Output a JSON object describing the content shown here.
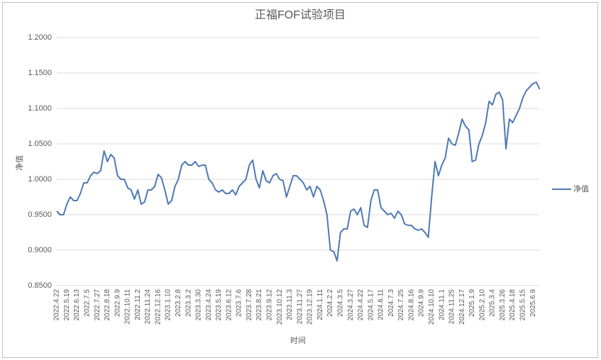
{
  "chart_data": {
    "type": "line",
    "title": "正福FOF试验项目",
    "x_label": "时间",
    "y_label": "净值",
    "categories": [
      "2022.4.22",
      null,
      null,
      "2022.5.19",
      null,
      null,
      "2022.6.13",
      null,
      null,
      "2022.7.5",
      null,
      null,
      "2022.7.27",
      null,
      null,
      "2022.8.18",
      null,
      null,
      "2022.9.9",
      null,
      null,
      "2022.10.11",
      null,
      null,
      "2022.11.2",
      null,
      null,
      "2022.11.24",
      null,
      null,
      "2022.12.16",
      null,
      null,
      "2023.1.10",
      null,
      null,
      "2023.2.8",
      null,
      null,
      "2023.3.2",
      null,
      null,
      "2023.3.30",
      null,
      null,
      "2023.4.24",
      null,
      null,
      "2023.5.19",
      null,
      null,
      "2023.6.12",
      null,
      null,
      "2023.7.6",
      null,
      null,
      "2023.7.28",
      null,
      null,
      "2023.8.21",
      null,
      null,
      "2023.9.12",
      null,
      null,
      "2023.10.12",
      null,
      null,
      "2023.11.3",
      null,
      null,
      "2023.11.27",
      null,
      null,
      "2023.12.19",
      null,
      null,
      "2024.1.11",
      null,
      null,
      "2024.2.2",
      null,
      null,
      "2024.3.5",
      null,
      null,
      "2024.3.27",
      null,
      null,
      "2024.4.22",
      null,
      null,
      "2024.5.17",
      null,
      null,
      "2024.6.11",
      null,
      null,
      "2024.7.3",
      null,
      null,
      "2024.7.25",
      null,
      null,
      "2024.8.16",
      null,
      null,
      "2024.9.9",
      null,
      null,
      "2024.10.10",
      null,
      null,
      "2024.11.1",
      null,
      null,
      "2024.11.25",
      null,
      null,
      "2024.12.17",
      null,
      null,
      "2025.1.9",
      null,
      null,
      "2025.2.10",
      null,
      null,
      "2025.3.4",
      null,
      null,
      "2025.3.26",
      null,
      null,
      "2025.4.18",
      null,
      null,
      "2025.5.15",
      null,
      null,
      "2025.6.9",
      null,
      null
    ],
    "series": [
      {
        "name": "净值",
        "color": "#4e79b4",
        "values": [
          0.955,
          0.95,
          0.95,
          0.965,
          0.975,
          0.97,
          0.97,
          0.98,
          0.995,
          0.995,
          1.005,
          1.01,
          1.008,
          1.012,
          1.04,
          1.025,
          1.035,
          1.03,
          1.005,
          1.0,
          1.0,
          0.988,
          0.985,
          0.972,
          0.985,
          0.965,
          0.968,
          0.985,
          0.985,
          0.99,
          1.007,
          1.002,
          0.985,
          0.965,
          0.97,
          0.99,
          1.0,
          1.02,
          1.025,
          1.02,
          1.02,
          1.025,
          1.018,
          1.02,
          1.02,
          1.0,
          0.995,
          0.985,
          0.982,
          0.985,
          0.98,
          0.98,
          0.985,
          0.978,
          0.99,
          0.995,
          1.0,
          1.02,
          1.027,
          1.0,
          0.988,
          1.012,
          0.998,
          0.995,
          1.005,
          1.008,
          1.0,
          0.998,
          0.975,
          0.99,
          1.005,
          1.005,
          1.0,
          0.995,
          0.985,
          0.99,
          0.975,
          0.99,
          0.985,
          0.97,
          0.95,
          0.9,
          0.898,
          0.885,
          0.925,
          0.93,
          0.93,
          0.955,
          0.958,
          0.95,
          0.96,
          0.935,
          0.932,
          0.97,
          0.985,
          0.985,
          0.96,
          0.955,
          0.95,
          0.952,
          0.945,
          0.955,
          0.95,
          0.937,
          0.935,
          0.935,
          0.93,
          0.928,
          0.93,
          0.925,
          0.918,
          0.975,
          1.025,
          1.005,
          1.02,
          1.03,
          1.058,
          1.05,
          1.048,
          1.065,
          1.085,
          1.075,
          1.07,
          1.025,
          1.027,
          1.05,
          1.062,
          1.08,
          1.11,
          1.105,
          1.12,
          1.123,
          1.112,
          1.043,
          1.085,
          1.08,
          1.09,
          1.1,
          1.115,
          1.125,
          1.13,
          1.135,
          1.137,
          1.127
        ]
      }
    ],
    "ylim": [
      0.85,
      1.2
    ],
    "yticks": [
      {
        "value": 0.85,
        "label": "0.8500"
      },
      {
        "value": 0.9,
        "label": "0.9000"
      },
      {
        "value": 0.95,
        "label": "0.9500"
      },
      {
        "value": 1.0,
        "label": "1.0000"
      },
      {
        "value": 1.05,
        "label": "1.0500"
      },
      {
        "value": 1.1,
        "label": "1.1000"
      },
      {
        "value": 1.15,
        "label": "1.1500"
      },
      {
        "value": 1.2,
        "label": "1.2000"
      }
    ],
    "grid": true,
    "legend": "right"
  }
}
